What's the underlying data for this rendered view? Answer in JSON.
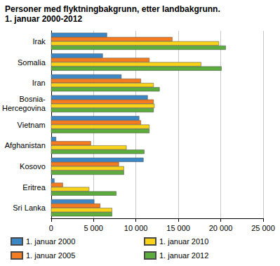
{
  "chart_data": {
    "type": "bar",
    "orientation": "horizontal",
    "title": "Personer med flyktningbakgrunn, etter landbakgrunn.",
    "subtitle": "1. januar 2000-2012",
    "categories": [
      "Irak",
      "Somalia",
      "Iran",
      "Bosnia-Hercegovina",
      "Vietnam",
      "Afghanistan",
      "Kosovo",
      "Eritrea",
      "Sri Lanka"
    ],
    "series": [
      {
        "name": "1. januar 2000",
        "color": "#3b87c6",
        "values": [
          6600,
          6100,
          8300,
          11400,
          10400,
          600,
          10900,
          400,
          5100
        ]
      },
      {
        "name": "1. januar 2005",
        "color": "#f47b20",
        "values": [
          14300,
          11600,
          10600,
          12100,
          10600,
          4700,
          8000,
          1400,
          5800
        ]
      },
      {
        "name": "1. januar 2010",
        "color": "#f9d31a",
        "values": [
          19800,
          17700,
          12100,
          12200,
          11600,
          8900,
          8600,
          4500,
          7200
        ]
      },
      {
        "name": "1. januar 2012",
        "color": "#5cab3d",
        "values": [
          20600,
          20100,
          12800,
          12100,
          11600,
          11000,
          8600,
          7700,
          7200
        ]
      }
    ],
    "xlim": [
      0,
      25000
    ],
    "xticks": [
      0,
      {
        "value": 5000,
        "label": "5 000"
      },
      {
        "value": 10000,
        "label": "10 000"
      },
      {
        "value": 15000,
        "label": "15 000"
      },
      {
        "value": 20000,
        "label": "20 000"
      },
      {
        "value": 25000,
        "label": "25 000"
      }
    ],
    "grid": true,
    "legend": "bottom"
  }
}
